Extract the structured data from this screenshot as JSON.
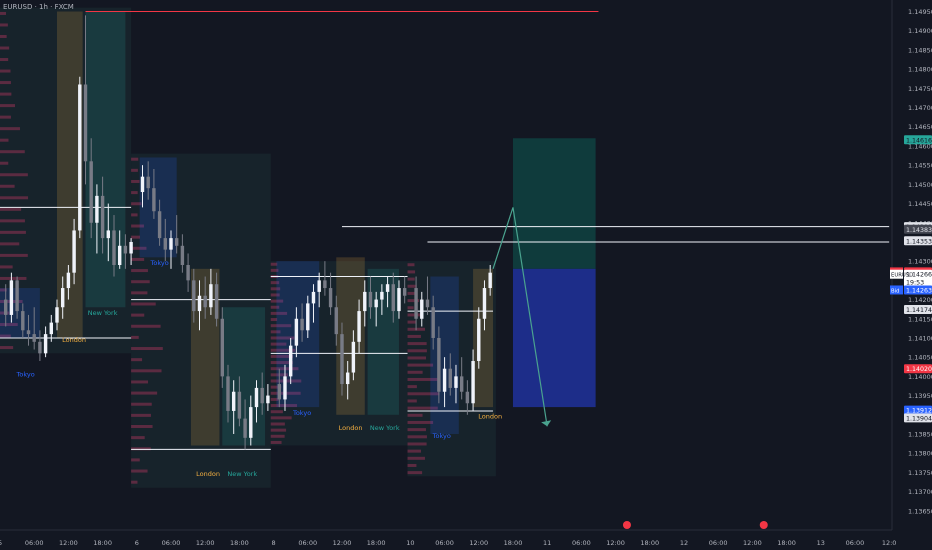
{
  "header": {
    "symbol_line": "EURUSD · 1h · FXCM"
  },
  "chart_data": {
    "type": "candlestick",
    "title": "",
    "ylim": [
      1.136,
      1.1498
    ],
    "y_ticks": [
      "1.14950",
      "1.14900",
      "1.14850",
      "1.14800",
      "1.14750",
      "1.14700",
      "1.14650",
      "1.14600",
      "1.14550",
      "1.14500",
      "1.14450",
      "1.14400",
      "1.14350",
      "1.14300",
      "1.14250",
      "1.14200",
      "1.14150",
      "1.14100",
      "1.14050",
      "1.14000",
      "1.13950",
      "1.13900",
      "1.13850",
      "1.13800",
      "1.13750",
      "1.13700",
      "1.13650"
    ],
    "x_ticks": [
      {
        "label": "5",
        "x": 0.0
      },
      {
        "label": "06:00",
        "x": 6.0
      },
      {
        "label": "12:00",
        "x": 12.0
      },
      {
        "label": "18:00",
        "x": 18.0
      },
      {
        "label": "6",
        "x": 24.0
      },
      {
        "label": "06:00",
        "x": 30.0
      },
      {
        "label": "12:00",
        "x": 36.0
      },
      {
        "label": "18:00",
        "x": 42.0
      },
      {
        "label": "8",
        "x": 48.0
      },
      {
        "label": "06:00",
        "x": 54.0
      },
      {
        "label": "12:00",
        "x": 60.0
      },
      {
        "label": "18:00",
        "x": 66.0
      },
      {
        "label": "10",
        "x": 72.0
      },
      {
        "label": "06:00",
        "x": 78.0
      },
      {
        "label": "12:00",
        "x": 84.0
      },
      {
        "label": "18:00",
        "x": 90.0
      },
      {
        "label": "11",
        "x": 96.0
      },
      {
        "label": "06:00",
        "x": 102.0
      },
      {
        "label": "12:00",
        "x": 108.0
      },
      {
        "label": "18:00",
        "x": 114.0
      },
      {
        "label": "12",
        "x": 120.0
      },
      {
        "label": "06:00",
        "x": 126.0
      },
      {
        "label": "12:00",
        "x": 132.0
      },
      {
        "label": "18:00",
        "x": 138.0
      },
      {
        "label": "13",
        "x": 144.0
      },
      {
        "label": "06:00",
        "x": 150.0
      },
      {
        "label": "12:0",
        "x": 156.0
      }
    ],
    "candles": [
      {
        "x": 1,
        "o": 1.142,
        "h": 1.1424,
        "l": 1.1413,
        "c": 1.1416
      },
      {
        "x": 2,
        "o": 1.1416,
        "h": 1.1427,
        "l": 1.1414,
        "c": 1.1425
      },
      {
        "x": 3,
        "o": 1.1425,
        "h": 1.1426,
        "l": 1.1415,
        "c": 1.1417
      },
      {
        "x": 4,
        "o": 1.1417,
        "h": 1.1419,
        "l": 1.141,
        "c": 1.1412
      },
      {
        "x": 5,
        "o": 1.1412,
        "h": 1.1416,
        "l": 1.1408,
        "c": 1.1411
      },
      {
        "x": 6,
        "o": 1.1411,
        "h": 1.1418,
        "l": 1.1407,
        "c": 1.1409
      },
      {
        "x": 7,
        "o": 1.1409,
        "h": 1.1412,
        "l": 1.1404,
        "c": 1.1406
      },
      {
        "x": 8,
        "o": 1.1406,
        "h": 1.1413,
        "l": 1.1405,
        "c": 1.1411
      },
      {
        "x": 9,
        "o": 1.1411,
        "h": 1.1416,
        "l": 1.1409,
        "c": 1.1414
      },
      {
        "x": 10,
        "o": 1.1414,
        "h": 1.142,
        "l": 1.1412,
        "c": 1.1418
      },
      {
        "x": 11,
        "o": 1.1418,
        "h": 1.1426,
        "l": 1.1415,
        "c": 1.1423
      },
      {
        "x": 12,
        "o": 1.1423,
        "h": 1.1429,
        "l": 1.142,
        "c": 1.1427
      },
      {
        "x": 13,
        "o": 1.1427,
        "h": 1.1441,
        "l": 1.1424,
        "c": 1.1438
      },
      {
        "x": 14,
        "o": 1.1438,
        "h": 1.1478,
        "l": 1.1436,
        "c": 1.1476
      },
      {
        "x": 15,
        "o": 1.1476,
        "h": 1.1494,
        "l": 1.145,
        "c": 1.1456
      },
      {
        "x": 16,
        "o": 1.1456,
        "h": 1.1462,
        "l": 1.1436,
        "c": 1.144
      },
      {
        "x": 17,
        "o": 1.144,
        "h": 1.145,
        "l": 1.1432,
        "c": 1.1447
      },
      {
        "x": 18,
        "o": 1.1447,
        "h": 1.1452,
        "l": 1.1432,
        "c": 1.1436
      },
      {
        "x": 19,
        "o": 1.1436,
        "h": 1.1445,
        "l": 1.143,
        "c": 1.1438
      },
      {
        "x": 20,
        "o": 1.1438,
        "h": 1.1442,
        "l": 1.1426,
        "c": 1.1429
      },
      {
        "x": 21,
        "o": 1.1429,
        "h": 1.1438,
        "l": 1.1428,
        "c": 1.1434
      },
      {
        "x": 22,
        "o": 1.1434,
        "h": 1.1437,
        "l": 1.1428,
        "c": 1.1432
      },
      {
        "x": 23,
        "o": 1.1432,
        "h": 1.1436,
        "l": 1.1429,
        "c": 1.1435
      },
      {
        "x": 25,
        "o": 1.1448,
        "h": 1.1455,
        "l": 1.1444,
        "c": 1.1452
      },
      {
        "x": 26,
        "o": 1.1452,
        "h": 1.1456,
        "l": 1.1446,
        "c": 1.1449
      },
      {
        "x": 27,
        "o": 1.1449,
        "h": 1.1454,
        "l": 1.1441,
        "c": 1.1443
      },
      {
        "x": 28,
        "o": 1.1443,
        "h": 1.1446,
        "l": 1.1434,
        "c": 1.1436
      },
      {
        "x": 29,
        "o": 1.1436,
        "h": 1.1441,
        "l": 1.143,
        "c": 1.1433
      },
      {
        "x": 30,
        "o": 1.1433,
        "h": 1.1438,
        "l": 1.1428,
        "c": 1.1436
      },
      {
        "x": 31,
        "o": 1.1436,
        "h": 1.1442,
        "l": 1.1432,
        "c": 1.1434
      },
      {
        "x": 32,
        "o": 1.1434,
        "h": 1.1437,
        "l": 1.1427,
        "c": 1.1429
      },
      {
        "x": 33,
        "o": 1.1429,
        "h": 1.1432,
        "l": 1.1422,
        "c": 1.1425
      },
      {
        "x": 34,
        "o": 1.1425,
        "h": 1.1428,
        "l": 1.1414,
        "c": 1.1417
      },
      {
        "x": 35,
        "o": 1.1417,
        "h": 1.1425,
        "l": 1.1412,
        "c": 1.1421
      },
      {
        "x": 36,
        "o": 1.1421,
        "h": 1.1426,
        "l": 1.1415,
        "c": 1.1418
      },
      {
        "x": 37,
        "o": 1.1418,
        "h": 1.1428,
        "l": 1.1416,
        "c": 1.1424
      },
      {
        "x": 38,
        "o": 1.1424,
        "h": 1.1427,
        "l": 1.1413,
        "c": 1.1415
      },
      {
        "x": 39,
        "o": 1.1415,
        "h": 1.1418,
        "l": 1.1397,
        "c": 1.14
      },
      {
        "x": 40,
        "o": 1.14,
        "h": 1.1403,
        "l": 1.1388,
        "c": 1.1391
      },
      {
        "x": 41,
        "o": 1.1391,
        "h": 1.1399,
        "l": 1.1385,
        "c": 1.1396
      },
      {
        "x": 42,
        "o": 1.1396,
        "h": 1.14,
        "l": 1.1387,
        "c": 1.1389
      },
      {
        "x": 43,
        "o": 1.1389,
        "h": 1.1394,
        "l": 1.1381,
        "c": 1.1384
      },
      {
        "x": 44,
        "o": 1.1384,
        "h": 1.1395,
        "l": 1.1382,
        "c": 1.1392
      },
      {
        "x": 45,
        "o": 1.1392,
        "h": 1.1399,
        "l": 1.1388,
        "c": 1.1397
      },
      {
        "x": 46,
        "o": 1.1397,
        "h": 1.1401,
        "l": 1.139,
        "c": 1.1393
      },
      {
        "x": 47,
        "o": 1.1393,
        "h": 1.1398,
        "l": 1.1391,
        "c": 1.1395
      },
      {
        "x": 49,
        "o": 1.1398,
        "h": 1.1402,
        "l": 1.1392,
        "c": 1.1394
      },
      {
        "x": 50,
        "o": 1.1394,
        "h": 1.1403,
        "l": 1.1391,
        "c": 1.14
      },
      {
        "x": 51,
        "o": 1.14,
        "h": 1.141,
        "l": 1.1398,
        "c": 1.1408
      },
      {
        "x": 52,
        "o": 1.1408,
        "h": 1.1418,
        "l": 1.1405,
        "c": 1.1415
      },
      {
        "x": 53,
        "o": 1.1415,
        "h": 1.1419,
        "l": 1.1409,
        "c": 1.1412
      },
      {
        "x": 54,
        "o": 1.1412,
        "h": 1.1421,
        "l": 1.141,
        "c": 1.1419
      },
      {
        "x": 55,
        "o": 1.1419,
        "h": 1.1424,
        "l": 1.1414,
        "c": 1.1422
      },
      {
        "x": 56,
        "o": 1.1422,
        "h": 1.1427,
        "l": 1.1418,
        "c": 1.1425
      },
      {
        "x": 57,
        "o": 1.1425,
        "h": 1.143,
        "l": 1.1421,
        "c": 1.1423
      },
      {
        "x": 58,
        "o": 1.1423,
        "h": 1.1427,
        "l": 1.1416,
        "c": 1.1418
      },
      {
        "x": 59,
        "o": 1.1418,
        "h": 1.1421,
        "l": 1.1408,
        "c": 1.1411
      },
      {
        "x": 60,
        "o": 1.1411,
        "h": 1.1414,
        "l": 1.1395,
        "c": 1.1398
      },
      {
        "x": 61,
        "o": 1.1398,
        "h": 1.1404,
        "l": 1.1394,
        "c": 1.1401
      },
      {
        "x": 62,
        "o": 1.1401,
        "h": 1.1412,
        "l": 1.1399,
        "c": 1.1409
      },
      {
        "x": 63,
        "o": 1.1409,
        "h": 1.142,
        "l": 1.1406,
        "c": 1.1417
      },
      {
        "x": 64,
        "o": 1.1417,
        "h": 1.1425,
        "l": 1.1413,
        "c": 1.1422
      },
      {
        "x": 65,
        "o": 1.1422,
        "h": 1.1426,
        "l": 1.1415,
        "c": 1.1418
      },
      {
        "x": 66,
        "o": 1.1418,
        "h": 1.1422,
        "l": 1.1413,
        "c": 1.142
      },
      {
        "x": 67,
        "o": 1.142,
        "h": 1.1424,
        "l": 1.1416,
        "c": 1.1422
      },
      {
        "x": 68,
        "o": 1.1422,
        "h": 1.1426,
        "l": 1.1418,
        "c": 1.1424
      },
      {
        "x": 69,
        "o": 1.1424,
        "h": 1.1427,
        "l": 1.1414,
        "c": 1.1417
      },
      {
        "x": 70,
        "o": 1.1417,
        "h": 1.1425,
        "l": 1.1415,
        "c": 1.1423
      },
      {
        "x": 71,
        "o": 1.1423,
        "h": 1.1426,
        "l": 1.1419,
        "c": 1.1421
      },
      {
        "x": 73,
        "o": 1.1423,
        "h": 1.1426,
        "l": 1.1412,
        "c": 1.1415
      },
      {
        "x": 74,
        "o": 1.1415,
        "h": 1.1422,
        "l": 1.1413,
        "c": 1.142
      },
      {
        "x": 75,
        "o": 1.142,
        "h": 1.1426,
        "l": 1.1416,
        "c": 1.1418
      },
      {
        "x": 76,
        "o": 1.1418,
        "h": 1.1421,
        "l": 1.1407,
        "c": 1.141
      },
      {
        "x": 77,
        "o": 1.141,
        "h": 1.1413,
        "l": 1.1393,
        "c": 1.1396
      },
      {
        "x": 78,
        "o": 1.1396,
        "h": 1.1405,
        "l": 1.1392,
        "c": 1.1402
      },
      {
        "x": 79,
        "o": 1.1402,
        "h": 1.1406,
        "l": 1.1395,
        "c": 1.1397
      },
      {
        "x": 80,
        "o": 1.1397,
        "h": 1.1403,
        "l": 1.1393,
        "c": 1.14
      },
      {
        "x": 81,
        "o": 1.14,
        "h": 1.1405,
        "l": 1.1394,
        "c": 1.1396
      },
      {
        "x": 82,
        "o": 1.1396,
        "h": 1.1399,
        "l": 1.139,
        "c": 1.1393
      },
      {
        "x": 83,
        "o": 1.1393,
        "h": 1.1407,
        "l": 1.1391,
        "c": 1.1404
      },
      {
        "x": 84,
        "o": 1.1404,
        "h": 1.1418,
        "l": 1.1402,
        "c": 1.1415
      },
      {
        "x": 85,
        "o": 1.1415,
        "h": 1.1425,
        "l": 1.1412,
        "c": 1.1423
      },
      {
        "x": 86,
        "o": 1.1423,
        "h": 1.1429,
        "l": 1.1421,
        "c": 1.1427
      }
    ],
    "sessions": [
      {
        "name": "Tokyo",
        "x0": 0.0,
        "x1": 7.0,
        "y0": 1.1423,
        "y1": 1.141,
        "color": "#2962ff",
        "label_x": 4.5,
        "label_y": 1.14
      },
      {
        "name": "London",
        "x0": 10.0,
        "x1": 14.5,
        "y0": 1.1495,
        "y1": 1.141,
        "color": "#f5b041",
        "label_x": 13.0,
        "label_y": 1.1409
      },
      {
        "name": "New York",
        "x0": 15.0,
        "x1": 22.0,
        "y0": 1.1495,
        "y1": 1.1418,
        "color": "#26a69a",
        "label_x": 18.0,
        "label_y": 1.1416
      },
      {
        "name": "Tokyo",
        "x0": 24.5,
        "x1": 31.0,
        "y0": 1.1457,
        "y1": 1.1431,
        "color": "#2962ff",
        "label_x": 28.0,
        "label_y": 1.1429
      },
      {
        "name": "London",
        "x0": 33.5,
        "x1": 38.5,
        "y0": 1.1428,
        "y1": 1.1382,
        "color": "#f5b041",
        "label_x": 36.5,
        "label_y": 1.1374
      },
      {
        "name": "New York",
        "x0": 39.0,
        "x1": 46.5,
        "y0": 1.1418,
        "y1": 1.1382,
        "color": "#26a69a",
        "label_x": 42.5,
        "label_y": 1.1374
      },
      {
        "name": "Tokyo",
        "x0": 48.5,
        "x1": 56.0,
        "y0": 1.143,
        "y1": 1.1392,
        "color": "#2962ff",
        "label_x": 53.0,
        "label_y": 1.139
      },
      {
        "name": "London",
        "x0": 59.0,
        "x1": 64.0,
        "y0": 1.1431,
        "y1": 1.139,
        "color": "#f5b041",
        "label_x": 61.5,
        "label_y": 1.1386
      },
      {
        "name": "New York",
        "x0": 64.5,
        "x1": 70.0,
        "y0": 1.1428,
        "y1": 1.139,
        "color": "#26a69a",
        "label_x": 67.5,
        "label_y": 1.1386
      },
      {
        "name": "Tokyo",
        "x0": 75.5,
        "x1": 80.5,
        "y0": 1.1426,
        "y1": 1.1385,
        "color": "#2962ff",
        "label_x": 77.5,
        "label_y": 1.1384
      },
      {
        "name": "London",
        "x0": 83.0,
        "x1": 86.5,
        "y0": 1.1428,
        "y1": 1.1392,
        "color": "#f5b041",
        "label_x": 86.0,
        "label_y": 1.1389
      }
    ],
    "profiles": [
      {
        "x0": 0.0,
        "x1": 23.0,
        "y0": 1.1496,
        "y1": 1.1406
      },
      {
        "x0": 23.0,
        "x1": 47.5,
        "y0": 1.1458,
        "y1": 1.1371
      },
      {
        "x0": 47.5,
        "x1": 71.5,
        "y0": 1.143,
        "y1": 1.1382
      },
      {
        "x0": 71.5,
        "x1": 87.0,
        "y0": 1.143,
        "y1": 1.1374
      }
    ],
    "levels": [
      {
        "y": 1.141,
        "x0": 0.0,
        "x1": 23.0
      },
      {
        "y": 1.1444,
        "x0": 0.0,
        "x1": 23.0
      },
      {
        "y": 1.142,
        "x0": 23.0,
        "x1": 47.5
      },
      {
        "y": 1.1381,
        "x0": 23.0,
        "x1": 47.5
      },
      {
        "y": 1.1426,
        "x0": 47.5,
        "x1": 71.5
      },
      {
        "y": 1.1406,
        "x0": 47.5,
        "x1": 71.5
      },
      {
        "y": 1.1439,
        "x0": 60.0,
        "x1": 156.0
      },
      {
        "y": 1.1435,
        "x0": 75.0,
        "x1": 156.0
      },
      {
        "y": 1.1417,
        "x0": 71.5,
        "x1": 86.5
      },
      {
        "y": 1.1391,
        "x0": 71.5,
        "x1": 86.5
      },
      {
        "y": 1.1495,
        "x0": 15.0,
        "x1": 105.0,
        "color": "#f23645"
      }
    ],
    "position": {
      "x0": 90.0,
      "x1": 104.5,
      "entry": 1.1428,
      "target": 1.1462,
      "stop": 1.1392
    },
    "path": [
      [
        86.5,
        1.1428
      ],
      [
        90.0,
        1.1444
      ],
      [
        96.0,
        1.1387
      ]
    ],
    "price_labels": [
      {
        "text": "1.14616",
        "y": 1.14616,
        "bg": "#26a69a",
        "fg": "#131722"
      },
      {
        "text": "1.14390",
        "y": 1.1439,
        "bg": "#e1e3ea",
        "fg": "#131722"
      },
      {
        "text": "1.14383",
        "y": 1.14383,
        "bg": "#434651",
        "fg": "#e1e3ea"
      },
      {
        "text": "1.14353",
        "y": 1.14353,
        "bg": "#e1e3ea",
        "fg": "#131722"
      },
      {
        "text": "1.14272",
        "y": 1.14272,
        "bg": "#f23645",
        "fg": "#ffffff",
        "tag": "Ask"
      },
      {
        "text": "1.14266",
        "y": 1.14266,
        "bg": "#ffffff",
        "fg": "#131722",
        "tag": "EURUSD"
      },
      {
        "text": "19:53",
        "y": 1.14246,
        "bg": "#ffffff",
        "fg": "#131722"
      },
      {
        "text": "1.14263",
        "y": 1.14225,
        "bg": "#2962ff",
        "fg": "#ffffff",
        "tag": "Bid"
      },
      {
        "text": "1.14174",
        "y": 1.14174,
        "bg": "#e1e3ea",
        "fg": "#131722"
      },
      {
        "text": "1.14020",
        "y": 1.1402,
        "bg": "#f23645",
        "fg": "#ffffff"
      },
      {
        "text": "1.13912",
        "y": 1.13912,
        "bg": "#2962ff",
        "fg": "#ffffff"
      },
      {
        "text": "1.13904",
        "y": 1.13892,
        "bg": "#e1e3ea",
        "fg": "#131722"
      }
    ],
    "news_x": [
      110.0,
      134.0
    ],
    "colors": {
      "bg": "#131722",
      "bull": "#f0f3fa",
      "bear": "#787b86",
      "axis_text": "#b2b5be",
      "level": "#f0f3fa",
      "profile": "#1b2e33",
      "target": "#0f3d3e",
      "stop": "#1d2e8f",
      "path": "#4aa38f"
    }
  }
}
